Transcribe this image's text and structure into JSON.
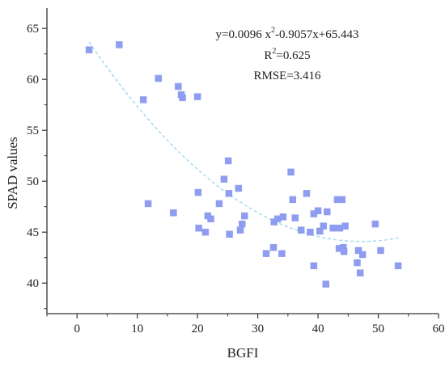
{
  "chart_data": {
    "type": "scatter",
    "title": "",
    "xlabel": "BGFI",
    "ylabel": "SPAD values",
    "xlim": [
      -5,
      60
    ],
    "ylim": [
      37,
      67
    ],
    "x_ticks": [
      0,
      10,
      20,
      30,
      40,
      50,
      60
    ],
    "y_ticks": [
      40,
      45,
      50,
      55,
      60,
      65
    ],
    "grid": false,
    "legend": "none",
    "colors": {
      "points": "#8f9df0",
      "fit_line": "#a9ddf2",
      "axis": "#333333"
    },
    "annotations": {
      "equation_prefix": "y=0.0096 x",
      "equation_sup": "2",
      "equation_suffix": "-0.9057x+65.443",
      "r2_prefix": "R",
      "r2_sup": "2",
      "r2_suffix": "=0.625",
      "rmse": "RMSE=3.416"
    },
    "fit": {
      "a": 0.0096,
      "b": -0.9057,
      "c": 65.443,
      "x_range": [
        2,
        53.5
      ]
    },
    "points": [
      {
        "x": 2,
        "y": 62.9
      },
      {
        "x": 7,
        "y": 63.4
      },
      {
        "x": 11,
        "y": 58.0
      },
      {
        "x": 11.8,
        "y": 47.8
      },
      {
        "x": 13.5,
        "y": 60.1
      },
      {
        "x": 16,
        "y": 46.9
      },
      {
        "x": 16.8,
        "y": 59.3
      },
      {
        "x": 17.3,
        "y": 58.5
      },
      {
        "x": 17.5,
        "y": 58.2
      },
      {
        "x": 20,
        "y": 58.3
      },
      {
        "x": 20.1,
        "y": 48.9
      },
      {
        "x": 20.2,
        "y": 45.4
      },
      {
        "x": 21.3,
        "y": 45.0
      },
      {
        "x": 21.7,
        "y": 46.6
      },
      {
        "x": 22.2,
        "y": 46.3
      },
      {
        "x": 23.6,
        "y": 47.8
      },
      {
        "x": 24.4,
        "y": 50.2
      },
      {
        "x": 25.1,
        "y": 52.0
      },
      {
        "x": 25.2,
        "y": 48.8
      },
      {
        "x": 25.3,
        "y": 44.8
      },
      {
        "x": 26.8,
        "y": 49.3
      },
      {
        "x": 27.1,
        "y": 45.2
      },
      {
        "x": 27.4,
        "y": 45.8
      },
      {
        "x": 27.8,
        "y": 46.6
      },
      {
        "x": 31.4,
        "y": 42.9
      },
      {
        "x": 32.6,
        "y": 43.5
      },
      {
        "x": 32.7,
        "y": 46.0
      },
      {
        "x": 33.3,
        "y": 46.3
      },
      {
        "x": 34.0,
        "y": 42.9
      },
      {
        "x": 34.2,
        "y": 46.5
      },
      {
        "x": 35.5,
        "y": 50.9
      },
      {
        "x": 35.8,
        "y": 48.2
      },
      {
        "x": 36.2,
        "y": 46.4
      },
      {
        "x": 37.2,
        "y": 45.2
      },
      {
        "x": 38.1,
        "y": 48.8
      },
      {
        "x": 38.7,
        "y": 45.0
      },
      {
        "x": 39.3,
        "y": 46.8
      },
      {
        "x": 39.3,
        "y": 41.7
      },
      {
        "x": 40.0,
        "y": 47.1
      },
      {
        "x": 40.3,
        "y": 45.1
      },
      {
        "x": 40.9,
        "y": 45.6
      },
      {
        "x": 41.3,
        "y": 39.9
      },
      {
        "x": 41.5,
        "y": 47.0
      },
      {
        "x": 42.5,
        "y": 45.4
      },
      {
        "x": 43.2,
        "y": 48.2
      },
      {
        "x": 43.5,
        "y": 43.4
      },
      {
        "x": 43.6,
        "y": 45.4
      },
      {
        "x": 44.0,
        "y": 48.2
      },
      {
        "x": 44.2,
        "y": 43.5
      },
      {
        "x": 44.3,
        "y": 43.1
      },
      {
        "x": 44.5,
        "y": 45.6
      },
      {
        "x": 46.5,
        "y": 42.0
      },
      {
        "x": 46.7,
        "y": 43.2
      },
      {
        "x": 47.0,
        "y": 41.0
      },
      {
        "x": 47.4,
        "y": 42.8
      },
      {
        "x": 49.5,
        "y": 45.8
      },
      {
        "x": 50.4,
        "y": 43.2
      },
      {
        "x": 53.3,
        "y": 41.7
      }
    ]
  }
}
